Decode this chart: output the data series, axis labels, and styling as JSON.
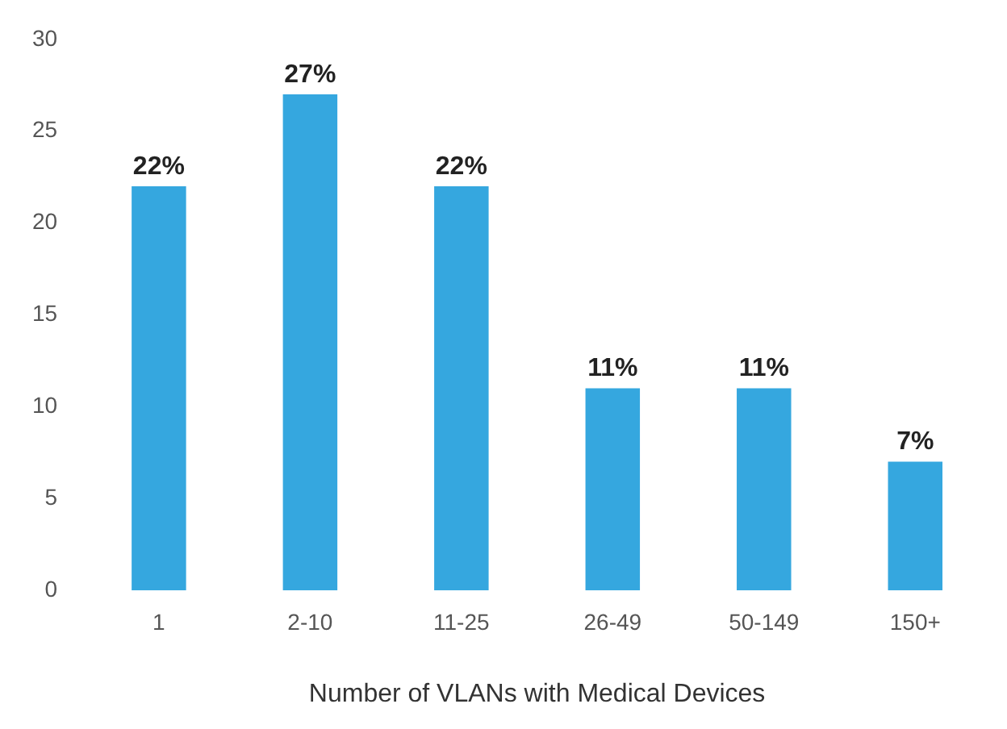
{
  "chart_data": {
    "type": "bar",
    "xlabel": "Number of VLANs with Medical Devices",
    "categories": [
      "1",
      "2-10",
      "11-25",
      "26-49",
      "50-149",
      "150+"
    ],
    "values": [
      22,
      27,
      22,
      11,
      11,
      7
    ],
    "value_labels": [
      "22%",
      "27%",
      "22%",
      "11%",
      "11%",
      "7%"
    ],
    "color": "#35a7df",
    "ylim": [
      0,
      30
    ],
    "yticks": [
      0,
      5,
      10,
      15,
      20,
      25,
      30
    ],
    "grid": false,
    "legend": false
  }
}
